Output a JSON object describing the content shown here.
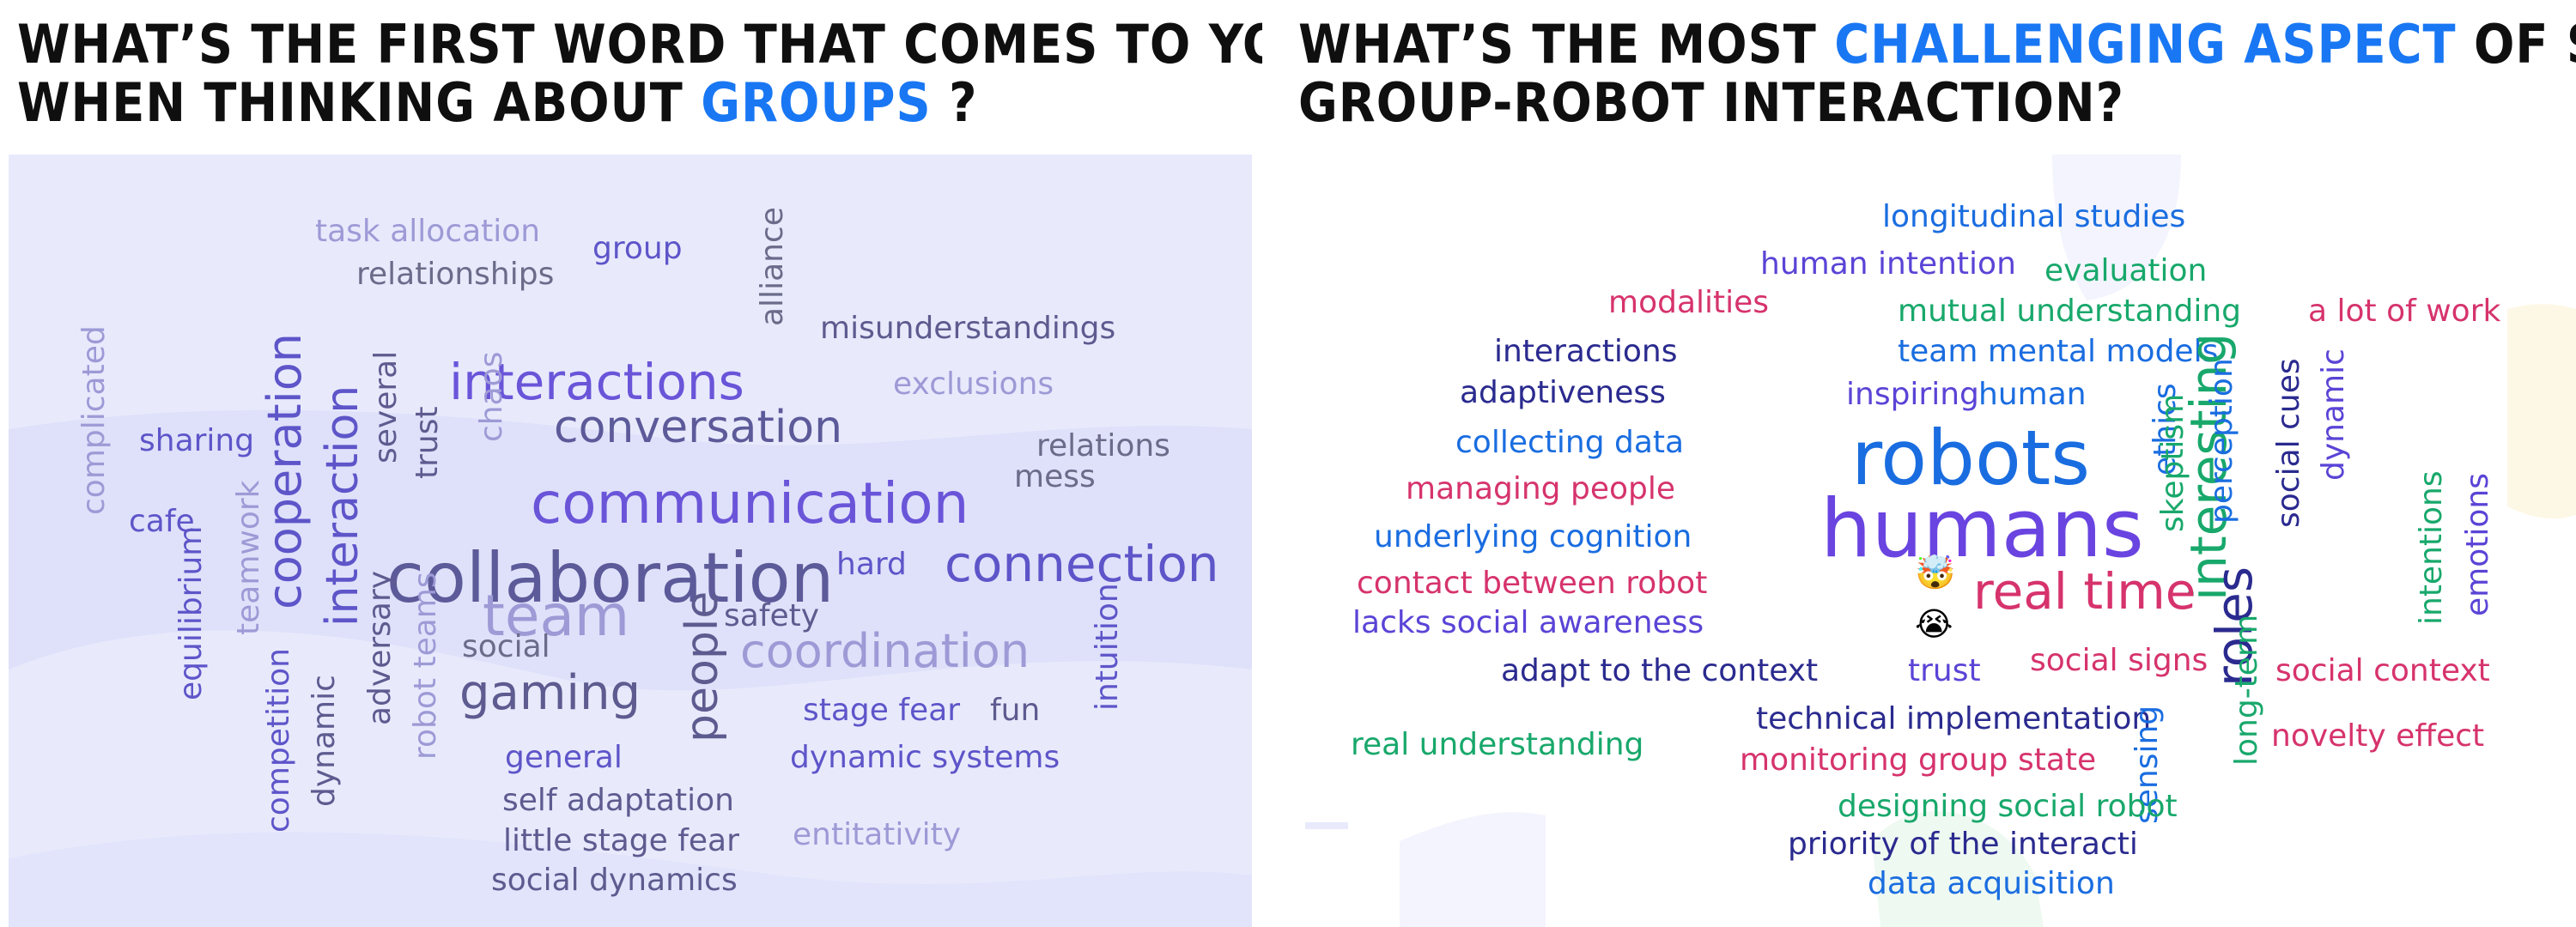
{
  "left": {
    "title_line1": "WHAT’S THE FIRST WORD THAT COMES TO YOUR MIND",
    "title_line2_prefix": "WHEN THINKING ABOUT ",
    "title_highlight": "GROUPS",
    "title_suffix": " ?",
    "highlight_color": "#1977f3",
    "words": [
      {
        "text": "task allocation",
        "color": "#9d9ad6"
      },
      {
        "text": "relationships",
        "color": "#6b6b8a"
      },
      {
        "text": "group",
        "color": "#5e55c9"
      },
      {
        "text": "alliance",
        "color": "#6b6b8a"
      },
      {
        "text": "misunderstandings",
        "color": "#5d5b8f"
      },
      {
        "text": "interactions",
        "color": "#6a55d9"
      },
      {
        "text": "conversation",
        "color": "#5d5a9a"
      },
      {
        "text": "exclusions",
        "color": "#9d9ad6"
      },
      {
        "text": "complicated",
        "color": "#9d9ad6"
      },
      {
        "text": "sharing",
        "color": "#5e55c9"
      },
      {
        "text": "cooperation",
        "color": "#5e55c9"
      },
      {
        "text": "interaction",
        "color": "#5e55c9"
      },
      {
        "text": "several",
        "color": "#5d5b8f"
      },
      {
        "text": "trust",
        "color": "#5d5b8f"
      },
      {
        "text": "chaos",
        "color": "#9d9ad6"
      },
      {
        "text": "communication",
        "color": "#6a55d9"
      },
      {
        "text": "relations",
        "color": "#6b6b8a"
      },
      {
        "text": "mess",
        "color": "#6b6b8a"
      },
      {
        "text": "cafe",
        "color": "#5e55c9"
      },
      {
        "text": "teamwork",
        "color": "#9d9ad6"
      },
      {
        "text": "collaboration",
        "color": "#5d5a9a"
      },
      {
        "text": "equilibrium",
        "color": "#5e55c9"
      },
      {
        "text": "hard",
        "color": "#5e55c9"
      },
      {
        "text": "connection",
        "color": "#5e55c9"
      },
      {
        "text": "team",
        "color": "#9d9ad6"
      },
      {
        "text": "safety",
        "color": "#5d5b8f"
      },
      {
        "text": "adversary",
        "color": "#5d5b8f"
      },
      {
        "text": "robot teams",
        "color": "#9d9ad6"
      },
      {
        "text": "social",
        "color": "#6b6b8a"
      },
      {
        "text": "people",
        "color": "#5d5b8f"
      },
      {
        "text": "coordination",
        "color": "#9d9ad6"
      },
      {
        "text": "intuition",
        "color": "#5e55c9"
      },
      {
        "text": "gaming",
        "color": "#5d5b8f"
      },
      {
        "text": "stage fear",
        "color": "#5e55c9"
      },
      {
        "text": "fun",
        "color": "#5d5b8f"
      },
      {
        "text": "competition",
        "color": "#5e55c9"
      },
      {
        "text": "dynamic",
        "color": "#5d5b8f"
      },
      {
        "text": "general",
        "color": "#5e55c9"
      },
      {
        "text": "dynamic systems",
        "color": "#5e55c9"
      },
      {
        "text": "self adaptation",
        "color": "#5d5b8f"
      },
      {
        "text": "entitativity",
        "color": "#9d9ad6"
      },
      {
        "text": "little stage fear",
        "color": "#5d5b8f"
      },
      {
        "text": "social dynamics",
        "color": "#5d5b8f"
      }
    ]
  },
  "right": {
    "title_prefix": "WHAT’S THE MOST ",
    "title_highlight": "CHALLENGING ASPECT",
    "title_suffix": " OF STUDYING",
    "title_line2": "GROUP-ROBOT INTERACTION?",
    "highlight_color": "#1977f3",
    "words": [
      {
        "text": "longitudinal studies",
        "color": "#1a6de0"
      },
      {
        "text": "human intention",
        "color": "#5a44d6"
      },
      {
        "text": "evaluation",
        "color": "#18a86b"
      },
      {
        "text": "modalities",
        "color": "#d6336c"
      },
      {
        "text": "mutual understanding",
        "color": "#18a86b"
      },
      {
        "text": "a lot of work",
        "color": "#d6336c"
      },
      {
        "text": "interactions",
        "color": "#2a2a8f"
      },
      {
        "text": "team mental models",
        "color": "#1a6de0"
      },
      {
        "text": "adaptiveness",
        "color": "#2a2a8f"
      },
      {
        "text": "interesting",
        "color": "#18a86b"
      },
      {
        "text": "inspiring",
        "color": "#5a44d6"
      },
      {
        "text": "human",
        "color": "#1a6de0"
      },
      {
        "text": "ethics",
        "color": "#1a6de0"
      },
      {
        "text": "perception",
        "color": "#1a6de0"
      },
      {
        "text": "social cues",
        "color": "#2a2a8f"
      },
      {
        "text": "dynamic",
        "color": "#5a44d6"
      },
      {
        "text": "collecting data",
        "color": "#1a6de0"
      },
      {
        "text": "skeptism",
        "color": "#18a86b"
      },
      {
        "text": "robots",
        "color": "#1a6de0"
      },
      {
        "text": "managing people",
        "color": "#d6336c"
      },
      {
        "text": "humans",
        "color": "#6a44e0"
      },
      {
        "text": "underlying cognition",
        "color": "#1a6de0"
      },
      {
        "text": "intentions",
        "color": "#18a86b"
      },
      {
        "text": "emotions",
        "color": "#5a44d6"
      },
      {
        "text": "contact between robot",
        "color": "#d6336c"
      },
      {
        "text": "roles",
        "color": "#2a2a8f"
      },
      {
        "text": "real time",
        "color": "#d6336c"
      },
      {
        "text": "lacks social awareness",
        "color": "#5a44d6"
      },
      {
        "text": "social signs",
        "color": "#d6336c"
      },
      {
        "text": "adapt to the context",
        "color": "#2a2a8f"
      },
      {
        "text": "trust",
        "color": "#5a44d6"
      },
      {
        "text": "long-term",
        "color": "#18a86b"
      },
      {
        "text": "social context",
        "color": "#d6336c"
      },
      {
        "text": "technical implementation",
        "color": "#2a2a8f"
      },
      {
        "text": "sensing",
        "color": "#1a6de0"
      },
      {
        "text": "real understanding",
        "color": "#18a86b"
      },
      {
        "text": "monitoring group state",
        "color": "#d6336c"
      },
      {
        "text": "novelty effect",
        "color": "#d6336c"
      },
      {
        "text": "designing social robot",
        "color": "#18a86b"
      },
      {
        "text": "priority of the interacti",
        "color": "#2a2a8f"
      },
      {
        "text": "data acquisition",
        "color": "#1a6de0"
      }
    ],
    "emojis": [
      "🤯",
      "😭"
    ]
  }
}
